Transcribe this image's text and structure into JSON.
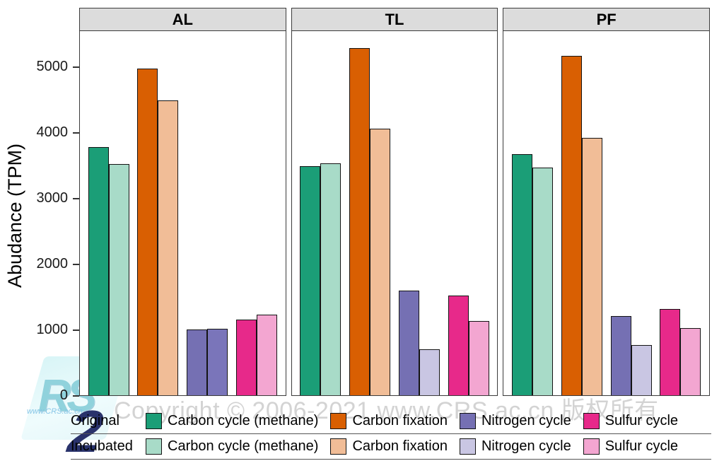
{
  "watermark": {
    "copyright_text": "Copyright © 2006-2021 www.CRS.ac.cn 版权所有",
    "logo_letters": "RS",
    "logo_url_text": "www.CRS.ac.cn",
    "logo_accent_glyph": "2"
  },
  "chart_data": {
    "type": "bar",
    "title": "",
    "xlabel": "",
    "ylabel": "Abudance (TPM)",
    "ylim": [
      0,
      5550
    ],
    "yticks": [
      0,
      1000,
      2000,
      3000,
      4000,
      5000
    ],
    "grid": false,
    "legend_position": "bottom",
    "categories": [
      "Carbon cycle (methane)",
      "Carbon fixation",
      "Nitrogen cycle",
      "Sulfur cycle"
    ],
    "facets": [
      {
        "name": "AL",
        "series": [
          {
            "name": "Original",
            "values": [
              3770,
              4970,
              1000,
              1150
            ]
          },
          {
            "name": "Incubated",
            "values": [
              3520,
              4480,
              1010,
              1230
            ]
          }
        ]
      },
      {
        "name": "TL",
        "series": [
          {
            "name": "Original",
            "values": [
              3490,
              5280,
              1590,
              1520
            ]
          },
          {
            "name": "Incubated",
            "values": [
              3530,
              4050,
              700,
              1130
            ]
          }
        ]
      },
      {
        "name": "PF",
        "series": [
          {
            "name": "Original",
            "values": [
              3670,
              5160,
              1200,
              1310
            ]
          },
          {
            "name": "Incubated",
            "values": [
              3460,
              3910,
              760,
              1020
            ]
          }
        ]
      }
    ],
    "colors": {
      "Original": [
        "#1B9E77",
        "#D95F02",
        "#7570B3",
        "#E7298A"
      ],
      "Incubated": [
        "#A8DBC8",
        "#F1BD97",
        "#C9C6E3",
        "#F3A6D1"
      ]
    },
    "color_overrides": [
      {
        "facet": "AL",
        "series": "Incubated",
        "category_index": 2,
        "color": "#7A75BA"
      }
    ]
  },
  "legend": {
    "rows": [
      {
        "row_label": "Original",
        "items": [
          "Carbon cycle (methane)",
          "Carbon fixation",
          "Nitrogen cycle",
          "Sulfur cycle"
        ]
      },
      {
        "row_label": "Incubated",
        "items": [
          "Carbon cycle (methane)",
          "Carbon fixation",
          "Nitrogen cycle",
          "Sulfur cycle"
        ]
      }
    ]
  }
}
